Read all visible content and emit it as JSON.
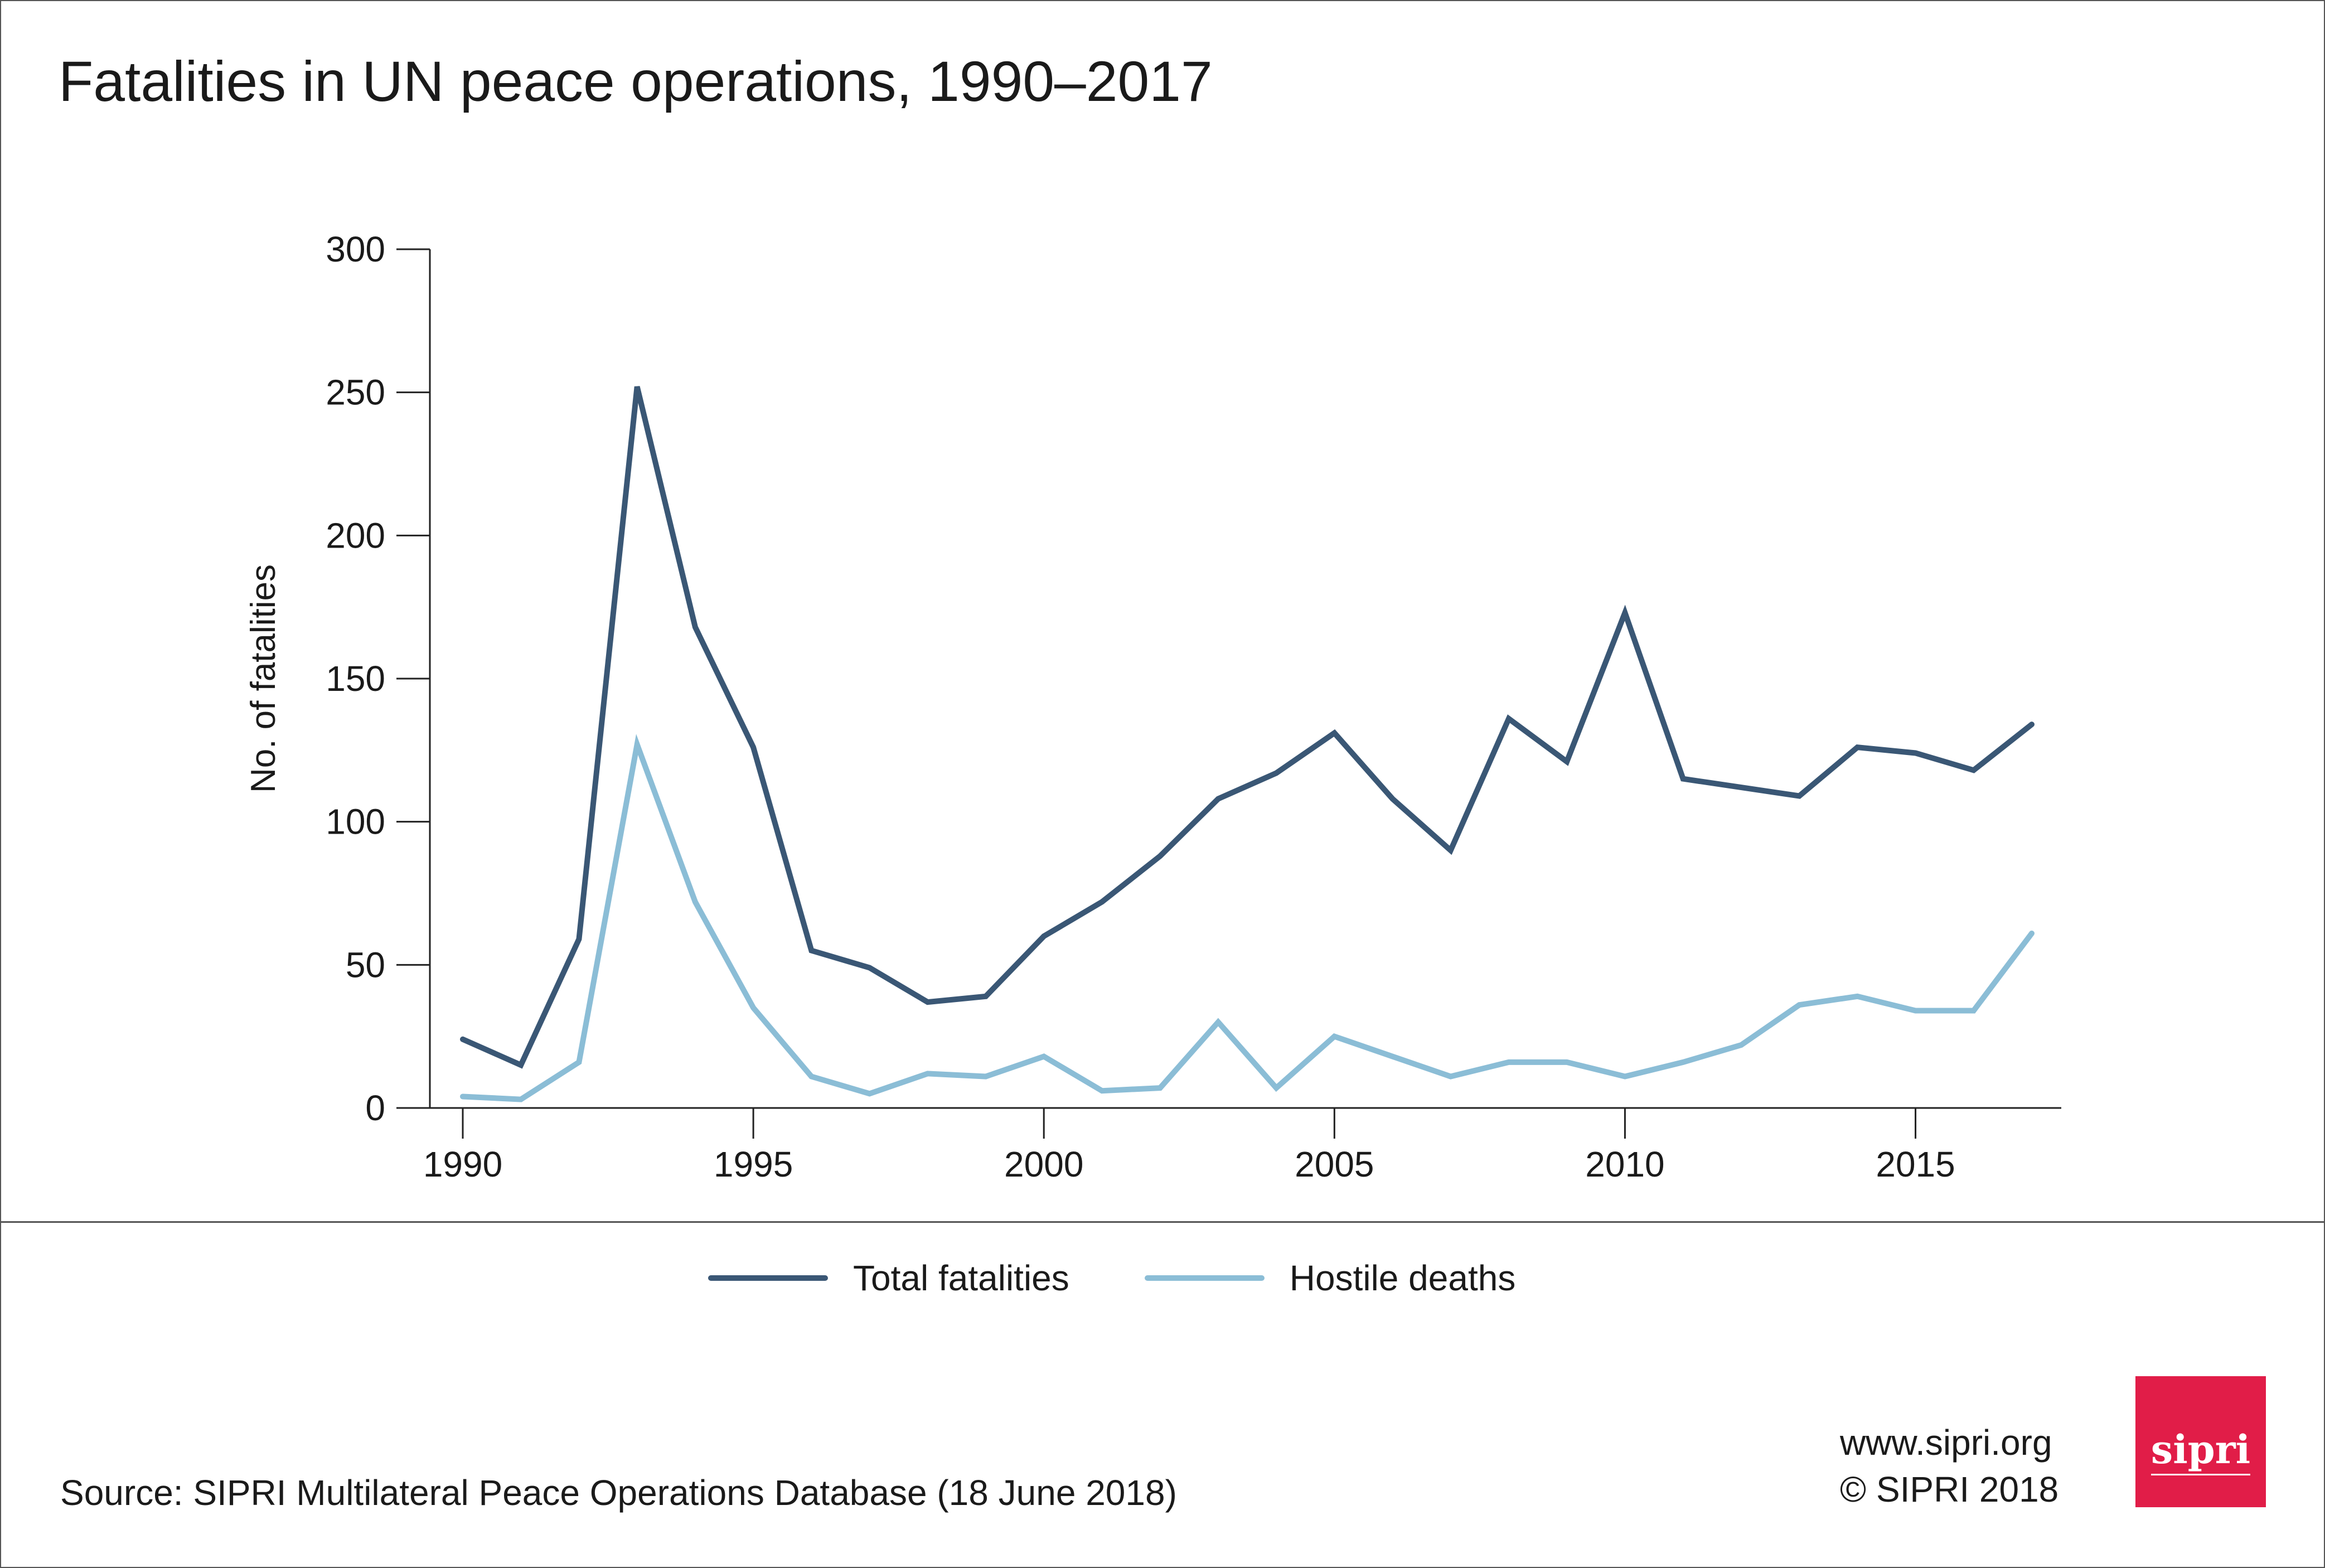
{
  "title": "Fatalities in UN peace operations, 1990–2017",
  "source": "Source: SIPRI Multilateral Peace Operations Database (18 June 2018)",
  "credit": {
    "url": "www.sipri.org",
    "copyright": "© SIPRI 2018"
  },
  "logo_text": "sipri",
  "colors": {
    "total": "#3a5775",
    "hostile": "#8bbdd6",
    "logo": "#e11d48"
  },
  "chart_data": {
    "type": "line",
    "title": "Fatalities in UN peace operations, 1990–2017",
    "xlabel": "",
    "ylabel": "No. of fatalities",
    "xlim": [
      1990,
      2017
    ],
    "ylim": [
      0,
      300
    ],
    "yticks": [
      0,
      50,
      100,
      150,
      200,
      250,
      300
    ],
    "xticks": [
      1990,
      1995,
      2000,
      2005,
      2010,
      2015
    ],
    "grid": false,
    "legend": "bottom",
    "x": [
      1990,
      1991,
      1992,
      1993,
      1994,
      1995,
      1996,
      1997,
      1998,
      1999,
      2000,
      2001,
      2002,
      2003,
      2004,
      2005,
      2006,
      2007,
      2008,
      2009,
      2010,
      2011,
      2012,
      2013,
      2014,
      2015,
      2016,
      2017
    ],
    "series": [
      {
        "name": "Total fatalities",
        "color": "#3a5775",
        "values": [
          24,
          15,
          59,
          252,
          168,
          126,
          55,
          49,
          37,
          39,
          60,
          72,
          88,
          108,
          117,
          131,
          108,
          90,
          136,
          121,
          173,
          115,
          112,
          109,
          126,
          124,
          118,
          134
        ]
      },
      {
        "name": "Hostile deaths",
        "color": "#8bbdd6",
        "values": [
          4,
          3,
          16,
          127,
          72,
          35,
          11,
          5,
          12,
          11,
          18,
          6,
          7,
          30,
          7,
          25,
          18,
          11,
          16,
          16,
          11,
          16,
          22,
          36,
          39,
          34,
          34,
          61
        ]
      }
    ]
  }
}
